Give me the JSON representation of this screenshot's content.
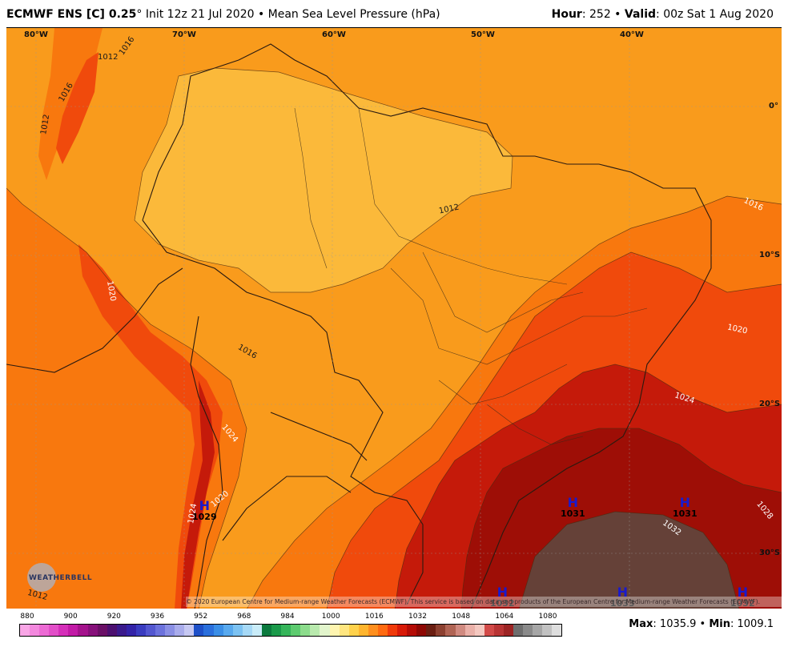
{
  "header": {
    "model": "ECMWF ENS [C] 0.25",
    "degree": "°",
    "init": " Init 12z 21 Jul 2020 • Mean Sea Level Pressure (hPa)",
    "hour_label": "Hour",
    "hour_value": ": 252 • ",
    "valid_label": "Valid",
    "valid_value": ": 00z Sat 1 Aug 2020"
  },
  "axes": {
    "lon_labels": [
      "80°W",
      "70°W",
      "60°W",
      "50°W",
      "40°W"
    ],
    "lat_labels": [
      "0°",
      "10°S",
      "20°S",
      "30°S"
    ]
  },
  "contours": {
    "c1012a": "1012",
    "c1012b": "1012",
    "c1016a": "1016",
    "c1016b": "1016",
    "c1012c": "1012",
    "c1012d": "1012",
    "c1016c": "1016",
    "c1020a": "1020",
    "c1016d": "1016",
    "c1024a": "1024",
    "c1020b": "1020",
    "c1024b": "1024",
    "c1020c": "1020",
    "c1024c": "1024",
    "c1028": "1028",
    "c1032": "1032",
    "c1012e": "1012"
  },
  "highs": [
    {
      "symbol": "H",
      "value": "1029"
    },
    {
      "symbol": "H",
      "value": "1031"
    },
    {
      "symbol": "H",
      "value": "1031"
    },
    {
      "symbol": "H",
      "value": "1032"
    },
    {
      "symbol": "H",
      "value": "1033"
    },
    {
      "symbol": "H",
      "value": "1032"
    }
  ],
  "credit": "© 2020 European Centre for Medium-range Weather Forecasts (ECMWF). This service is based on data and products of the European Centre for Medium-range Weather Forecasts (ECMWF).",
  "logo": "WEATHERBELL",
  "colorbar": {
    "ticks": [
      "880",
      "900",
      "920",
      "936",
      "952",
      "968",
      "984",
      "1000",
      "1016",
      "1032",
      "1048",
      "1064",
      "1080"
    ],
    "colors": [
      "#f9a6e6",
      "#f388de",
      "#ec6ad4",
      "#e24ec8",
      "#d52fb9",
      "#c21aa6",
      "#a4128c",
      "#86107a",
      "#6a0f66",
      "#4c1070",
      "#3a1a8c",
      "#3323a8",
      "#3a3cc0",
      "#5357d0",
      "#6c72dc",
      "#8a8fe4",
      "#a9aceb",
      "#c6c8f2",
      "#1e50c8",
      "#2a6fdc",
      "#3a8ee6",
      "#58a9ee",
      "#7cc2f2",
      "#a6d9f6",
      "#c9ecf8",
      "#0b7a3e",
      "#1a9a4a",
      "#35b55a",
      "#5dcb6f",
      "#8cdc8c",
      "#b9eaae",
      "#e2f5cc",
      "#fff5b0",
      "#ffe680",
      "#ffd24c",
      "#ffb52e",
      "#ff8f1e",
      "#ff6a10",
      "#f03a0a",
      "#d81a08",
      "#b40c06",
      "#8e0804",
      "#6a1e12",
      "#8c4030",
      "#b06454",
      "#d08a80",
      "#eab0a8",
      "#f4c8c0",
      "#d24a48",
      "#b83434",
      "#9c2424",
      "#6e6e6e",
      "#8a8a8a",
      "#a6a6a6",
      "#c2c2c2",
      "#dedede"
    ]
  },
  "stats": {
    "max_label": "Max",
    "max_value": ": 1035.9 • ",
    "min_label": "Min",
    "min_value": ": 1009.1"
  }
}
